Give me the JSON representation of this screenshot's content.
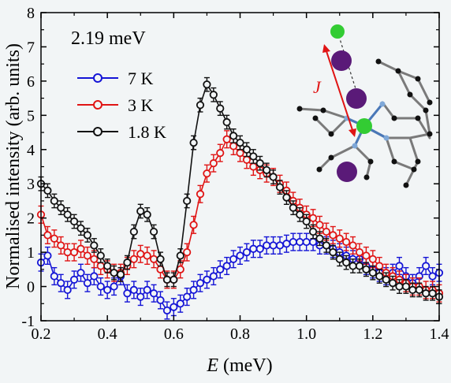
{
  "chart_data": {
    "type": "scatter",
    "annotation": "2.19 meV",
    "xlabel_italic": "E",
    "xlabel_unit": " (meV)",
    "ylabel": "Normalised intensity (arb. units)",
    "xlim": [
      0.2,
      1.4
    ],
    "ylim": [
      -1,
      8
    ],
    "xticks": [
      "0.2",
      "0.4",
      "0.6",
      "0.8",
      "1.0",
      "1.2",
      "1.4"
    ],
    "yticks": [
      "-1",
      "0",
      "1",
      "2",
      "3",
      "4",
      "5",
      "6",
      "7",
      "8"
    ],
    "legend_position": "top-left",
    "inset_label": "J",
    "series": [
      {
        "name": "7 K",
        "color": "#1414d6",
        "x": [
          0.2,
          0.22,
          0.24,
          0.26,
          0.28,
          0.3,
          0.32,
          0.34,
          0.36,
          0.38,
          0.4,
          0.42,
          0.44,
          0.46,
          0.48,
          0.5,
          0.52,
          0.54,
          0.56,
          0.58,
          0.6,
          0.62,
          0.64,
          0.66,
          0.68,
          0.7,
          0.72,
          0.74,
          0.76,
          0.78,
          0.8,
          0.82,
          0.84,
          0.86,
          0.88,
          0.9,
          0.92,
          0.94,
          0.96,
          0.98,
          1.0,
          1.02,
          1.04,
          1.06,
          1.08,
          1.1,
          1.12,
          1.14,
          1.16,
          1.18,
          1.2,
          1.22,
          1.24,
          1.26,
          1.28,
          1.3,
          1.32,
          1.34,
          1.36,
          1.38,
          1.4
        ],
        "y": [
          0.7,
          0.9,
          0.3,
          0.1,
          -0.1,
          0.2,
          0.4,
          0.1,
          0.3,
          0.0,
          -0.1,
          0.0,
          0.3,
          -0.2,
          -0.1,
          -0.3,
          -0.1,
          -0.2,
          -0.4,
          -0.7,
          -0.6,
          -0.5,
          -0.3,
          -0.1,
          0.1,
          0.2,
          0.3,
          0.5,
          0.6,
          0.8,
          0.9,
          1.0,
          1.1,
          1.1,
          1.2,
          1.2,
          1.2,
          1.25,
          1.3,
          1.3,
          1.3,
          1.3,
          1.2,
          1.2,
          1.1,
          1.0,
          0.9,
          0.8,
          0.8,
          0.6,
          0.5,
          0.4,
          0.3,
          0.4,
          0.6,
          0.3,
          0.1,
          0.3,
          0.6,
          0.3,
          0.4
        ],
        "yerr": 0.25
      },
      {
        "name": "3 K",
        "color": "#e01414",
        "x": [
          0.2,
          0.22,
          0.24,
          0.26,
          0.28,
          0.3,
          0.32,
          0.34,
          0.36,
          0.38,
          0.4,
          0.42,
          0.44,
          0.46,
          0.48,
          0.5,
          0.52,
          0.54,
          0.56,
          0.58,
          0.6,
          0.62,
          0.64,
          0.66,
          0.68,
          0.7,
          0.72,
          0.74,
          0.76,
          0.78,
          0.8,
          0.82,
          0.84,
          0.86,
          0.88,
          0.9,
          0.92,
          0.94,
          0.96,
          0.98,
          1.0,
          1.02,
          1.04,
          1.06,
          1.08,
          1.1,
          1.12,
          1.14,
          1.16,
          1.18,
          1.2,
          1.22,
          1.24,
          1.26,
          1.28,
          1.3,
          1.32,
          1.34,
          1.36,
          1.38,
          1.4
        ],
        "y": [
          2.1,
          1.5,
          1.4,
          1.2,
          1.0,
          1.0,
          1.1,
          0.9,
          0.8,
          0.6,
          0.5,
          0.4,
          0.4,
          0.6,
          0.8,
          0.95,
          0.9,
          0.8,
          0.5,
          0.2,
          0.2,
          0.5,
          1.0,
          1.8,
          2.7,
          3.3,
          3.6,
          3.9,
          4.3,
          4.1,
          3.9,
          3.7,
          3.5,
          3.4,
          3.3,
          3.2,
          3.0,
          2.8,
          2.5,
          2.3,
          2.1,
          2.0,
          1.8,
          1.6,
          1.5,
          1.4,
          1.3,
          1.2,
          1.0,
          0.9,
          0.8,
          0.6,
          0.4,
          0.3,
          0.2,
          0.1,
          0.0,
          0.0,
          -0.1,
          -0.1,
          -0.2
        ],
        "yerr": 0.25
      },
      {
        "name": "1.8 K",
        "color": "#111111",
        "x": [
          0.2,
          0.22,
          0.24,
          0.26,
          0.28,
          0.3,
          0.32,
          0.34,
          0.36,
          0.38,
          0.4,
          0.42,
          0.44,
          0.46,
          0.48,
          0.5,
          0.52,
          0.54,
          0.56,
          0.58,
          0.6,
          0.62,
          0.64,
          0.66,
          0.68,
          0.7,
          0.72,
          0.74,
          0.76,
          0.78,
          0.8,
          0.82,
          0.84,
          0.86,
          0.88,
          0.9,
          0.92,
          0.94,
          0.96,
          0.98,
          1.0,
          1.02,
          1.04,
          1.06,
          1.08,
          1.1,
          1.12,
          1.14,
          1.16,
          1.18,
          1.2,
          1.22,
          1.24,
          1.26,
          1.28,
          1.3,
          1.32,
          1.34,
          1.36,
          1.38,
          1.4
        ],
        "y": [
          3.0,
          2.8,
          2.5,
          2.3,
          2.1,
          1.9,
          1.7,
          1.5,
          1.2,
          0.9,
          0.6,
          0.4,
          0.35,
          0.7,
          1.6,
          2.2,
          2.1,
          1.6,
          0.8,
          0.2,
          0.2,
          0.9,
          2.5,
          4.2,
          5.3,
          5.9,
          5.6,
          5.2,
          4.8,
          4.4,
          4.2,
          4.0,
          3.8,
          3.6,
          3.4,
          3.2,
          2.9,
          2.6,
          2.3,
          2.1,
          1.9,
          1.6,
          1.4,
          1.2,
          1.0,
          0.8,
          0.7,
          0.6,
          0.6,
          0.5,
          0.4,
          0.3,
          0.2,
          0.1,
          0.0,
          0.0,
          -0.1,
          -0.1,
          -0.2,
          -0.2,
          -0.3
        ],
        "yerr": 0.2
      }
    ]
  }
}
